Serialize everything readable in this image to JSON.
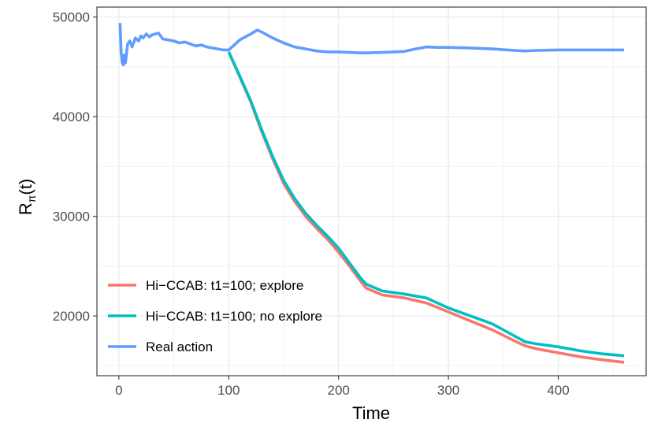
{
  "chart_data": {
    "type": "line",
    "title": "",
    "xlabel": "Time",
    "ylabel_main": "R",
    "ylabel_sub": "π",
    "ylabel_tail": "(t)",
    "xlim": [
      -20,
      480
    ],
    "ylim": [
      14000,
      51000
    ],
    "x_ticks": [
      0,
      100,
      200,
      300,
      400
    ],
    "x_tick_labels": [
      "0",
      "100",
      "200",
      "300",
      "400"
    ],
    "y_ticks": [
      20000,
      30000,
      40000,
      50000
    ],
    "y_tick_labels": [
      "20000",
      "30000",
      "40000",
      "50000"
    ],
    "grid": true,
    "legend_position": "bottom-left",
    "series": [
      {
        "name": "Hi−CCAB: t1=100; explore",
        "color": "#f8766d",
        "x": [
          100,
          110,
          120,
          130,
          140,
          150,
          160,
          170,
          180,
          190,
          200,
          210,
          220,
          225,
          240,
          260,
          280,
          300,
          320,
          340,
          360,
          370,
          380,
          400,
          420,
          440,
          460
        ],
        "y": [
          46500,
          44000,
          41500,
          38500,
          35800,
          33300,
          31500,
          30000,
          28800,
          27700,
          26400,
          25000,
          23500,
          22800,
          22100,
          21800,
          21300,
          20400,
          19500,
          18600,
          17500,
          17000,
          16700,
          16300,
          15900,
          15600,
          15350
        ]
      },
      {
        "name": "Hi−CCAB: t1=100; no explore",
        "color": "#00bfc4",
        "x": [
          100,
          110,
          120,
          130,
          140,
          150,
          160,
          170,
          180,
          190,
          200,
          210,
          220,
          225,
          240,
          260,
          280,
          300,
          320,
          340,
          360,
          370,
          380,
          400,
          420,
          440,
          460
        ],
        "y": [
          46500,
          44100,
          41600,
          38700,
          36000,
          33600,
          31800,
          30300,
          29100,
          28000,
          26800,
          25300,
          23800,
          23200,
          22500,
          22200,
          21800,
          20800,
          20000,
          19200,
          18000,
          17400,
          17200,
          16900,
          16500,
          16200,
          16000
        ]
      },
      {
        "name": "Real action",
        "color": "#619cff",
        "x": [
          1,
          2,
          3,
          4,
          5,
          6,
          8,
          10,
          12,
          15,
          18,
          20,
          22,
          25,
          28,
          30,
          33,
          36,
          40,
          45,
          50,
          55,
          60,
          65,
          70,
          75,
          80,
          85,
          90,
          95,
          100,
          105,
          110,
          115,
          120,
          126,
          130,
          135,
          140,
          150,
          160,
          170,
          180,
          190,
          200,
          210,
          220,
          230,
          240,
          250,
          260,
          270,
          280,
          290,
          300,
          320,
          340,
          360,
          370,
          380,
          400,
          420,
          440,
          460
        ],
        "y": [
          49400,
          46500,
          45400,
          45200,
          46200,
          45400,
          47300,
          47600,
          47000,
          47900,
          47600,
          48100,
          47900,
          48300,
          48000,
          48200,
          48300,
          48400,
          47800,
          47700,
          47600,
          47400,
          47500,
          47300,
          47100,
          47200,
          47000,
          46900,
          46800,
          46700,
          46700,
          47200,
          47700,
          48000,
          48300,
          48700,
          48500,
          48200,
          47900,
          47400,
          47000,
          46800,
          46600,
          46500,
          46500,
          46450,
          46400,
          46420,
          46450,
          46500,
          46550,
          46800,
          47000,
          46950,
          46950,
          46900,
          46800,
          46650,
          46600,
          46650,
          46700,
          46700,
          46700,
          46700
        ]
      }
    ]
  }
}
